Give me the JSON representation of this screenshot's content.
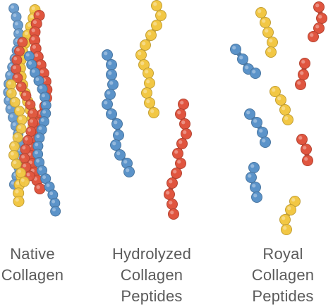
{
  "colors": {
    "blue": "#5b93c9",
    "yellow": "#f2c744",
    "red": "#e0553f"
  },
  "groups": [
    {
      "name": "native",
      "label_lines": [
        "Native",
        "Collagen"
      ]
    },
    {
      "name": "hydrolyzed",
      "label_lines": [
        "Hydrolyzed",
        "Collagen",
        "Peptides"
      ]
    },
    {
      "name": "royal",
      "label_lines": [
        "Royal",
        "Collagen",
        "Peptides"
      ]
    }
  ]
}
